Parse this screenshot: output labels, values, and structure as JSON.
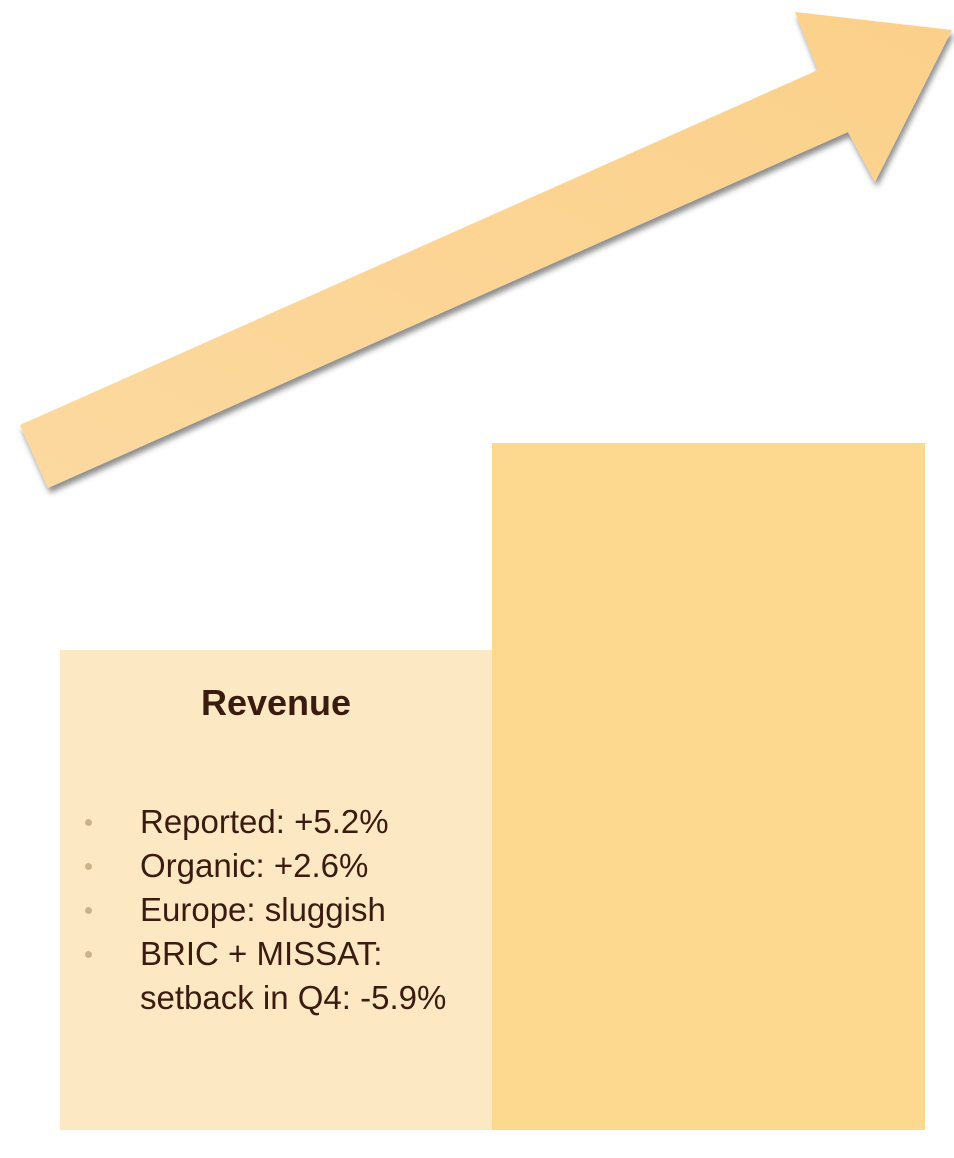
{
  "slide": {
    "title": "Revenue",
    "bullets": [
      "Reported: +5.2%",
      "Organic: +2.6%",
      "Europe: sluggish",
      "BRIC + MISSAT: setback in Q4: -5.9%"
    ]
  }
}
